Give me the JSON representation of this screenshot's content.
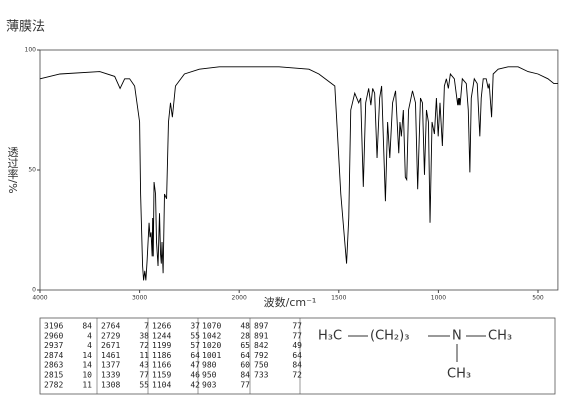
{
  "chart_data": {
    "type": "line",
    "title": "薄膜法",
    "x_label": "波数/cm⁻¹",
    "y_label": "透过率/%",
    "color": "#000000",
    "xlim": [
      4000,
      400
    ],
    "xticks": [
      4000,
      3000,
      2000,
      1500,
      1000,
      500
    ],
    "ylim": [
      0,
      100
    ],
    "yticks": [
      0,
      50,
      100
    ],
    "x": [
      4000,
      3800,
      3400,
      3250,
      3196,
      3150,
      3100,
      3050,
      3000,
      2990,
      2970,
      2960,
      2948,
      2937,
      2925,
      2905,
      2895,
      2885,
      2874,
      2869,
      2863,
      2855,
      2840,
      2830,
      2815,
      2800,
      2790,
      2782,
      2775,
      2764,
      2750,
      2729,
      2710,
      2690,
      2671,
      2640,
      2550,
      2400,
      2200,
      2000,
      1800,
      1650,
      1600,
      1520,
      1490,
      1461,
      1450,
      1440,
      1420,
      1400,
      1390,
      1377,
      1365,
      1350,
      1339,
      1330,
      1320,
      1308,
      1295,
      1285,
      1266,
      1255,
      1244,
      1230,
      1215,
      1199,
      1193,
      1186,
      1176,
      1166,
      1159,
      1150,
      1130,
      1115,
      1104,
      1090,
      1080,
      1070,
      1060,
      1050,
      1042,
      1032,
      1020,
      1010,
      1001,
      992,
      980,
      970,
      960,
      950,
      940,
      920,
      903,
      900,
      897,
      894,
      891,
      880,
      860,
      850,
      842,
      835,
      820,
      805,
      792,
      785,
      775,
      760,
      750,
      745,
      733,
      725,
      700,
      650,
      600,
      550,
      500,
      450,
      420,
      400
    ],
    "values": [
      88,
      90,
      91,
      89,
      84,
      88,
      88,
      85,
      70,
      40,
      10,
      4,
      8,
      4,
      12,
      28,
      22,
      24,
      14,
      30,
      14,
      45,
      40,
      20,
      10,
      32,
      15,
      11,
      20,
      7,
      40,
      38,
      70,
      78,
      72,
      85,
      90,
      92,
      93,
      93,
      93,
      92,
      90,
      85,
      40,
      11,
      30,
      75,
      82,
      78,
      80,
      43,
      78,
      84,
      77,
      84,
      82,
      55,
      80,
      85,
      37,
      70,
      55,
      78,
      83,
      57,
      70,
      64,
      75,
      47,
      46,
      75,
      83,
      78,
      42,
      80,
      78,
      48,
      75,
      70,
      28,
      70,
      65,
      80,
      64,
      78,
      60,
      85,
      88,
      84,
      90,
      88,
      77,
      80,
      77,
      80,
      77,
      88,
      86,
      75,
      49,
      80,
      88,
      86,
      64,
      80,
      88,
      88,
      84,
      86,
      72,
      90,
      92,
      93,
      93,
      91,
      90,
      88,
      86,
      86
    ]
  },
  "peak_table": [
    [
      [
        3196,
        84
      ],
      [
        2960,
        4
      ],
      [
        2937,
        4
      ],
      [
        2874,
        14
      ],
      [
        2863,
        14
      ],
      [
        2815,
        10
      ],
      [
        2782,
        11
      ]
    ],
    [
      [
        2764,
        7
      ],
      [
        2729,
        38
      ],
      [
        2671,
        72
      ],
      [
        1461,
        11
      ],
      [
        1377,
        43
      ],
      [
        1339,
        77
      ],
      [
        1308,
        55
      ]
    ],
    [
      [
        1266,
        37
      ],
      [
        1244,
        55
      ],
      [
        1199,
        57
      ],
      [
        1186,
        64
      ],
      [
        1166,
        47
      ],
      [
        1159,
        46
      ],
      [
        1104,
        42
      ]
    ],
    [
      [
        1070,
        48
      ],
      [
        1042,
        28
      ],
      [
        1020,
        65
      ],
      [
        1001,
        64
      ],
      [
        980,
        60
      ],
      [
        950,
        84
      ],
      [
        903,
        77
      ]
    ],
    [
      [
        897,
        77
      ],
      [
        891,
        77
      ],
      [
        842,
        49
      ],
      [
        792,
        64
      ],
      [
        750,
        84
      ],
      [
        733,
        72
      ]
    ]
  ],
  "structure": {
    "left": "H₃C",
    "chain": "(CH₂)₃",
    "n": "N",
    "right": "CH₃",
    "down": "CH₃"
  }
}
